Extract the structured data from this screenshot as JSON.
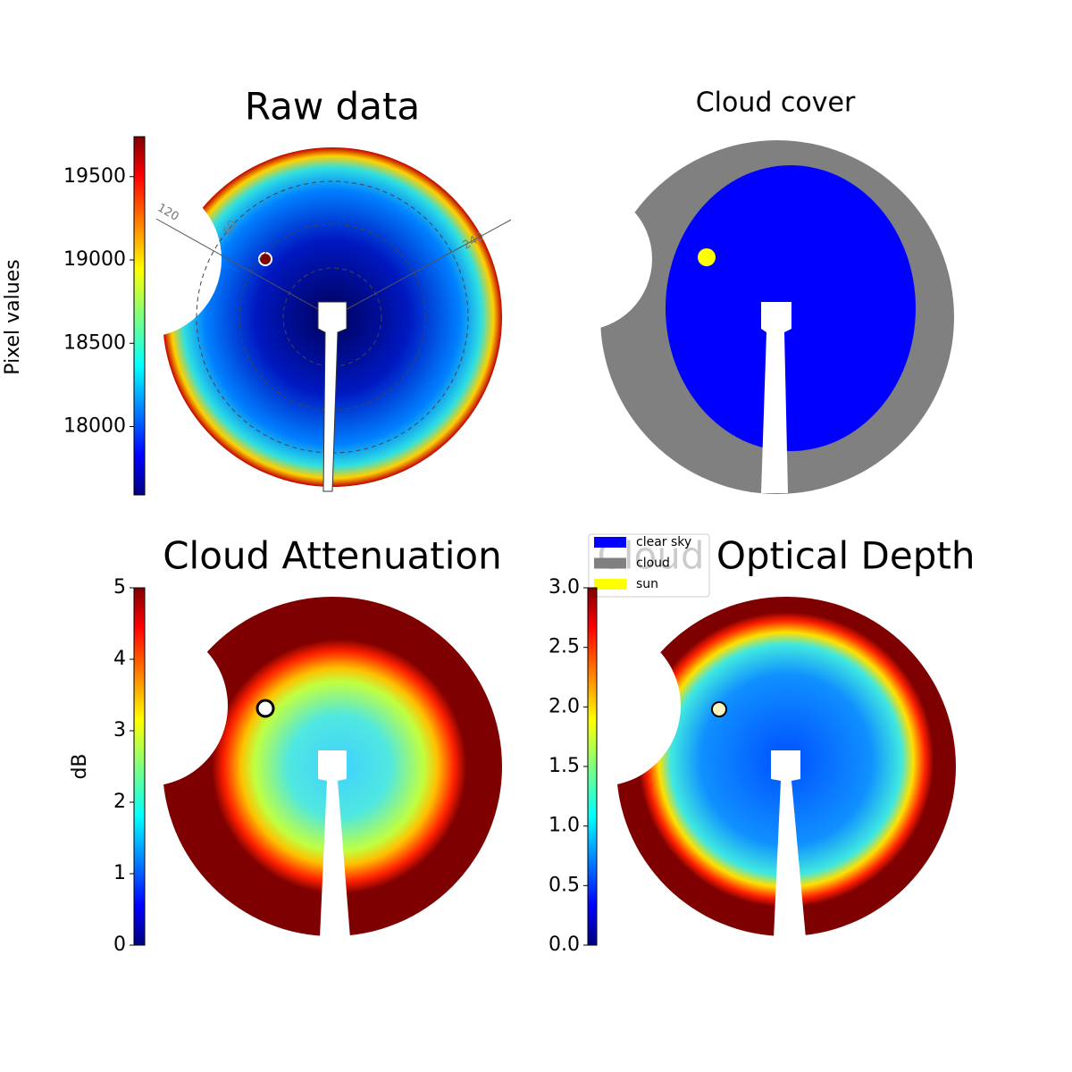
{
  "chart_data": [
    {
      "type": "image",
      "title": "Raw data",
      "colorbar_label": "Pixel values",
      "clim": [
        17590,
        19740
      ],
      "ticks": [
        18000,
        18500,
        19000,
        19500
      ],
      "annotations": [
        "120",
        "60",
        "240"
      ]
    },
    {
      "type": "image",
      "title": "Cloud cover",
      "legend": [
        {
          "name": "clear sky",
          "color": "#0000ff"
        },
        {
          "name": "cloud",
          "color": "#808080"
        },
        {
          "name": "sun",
          "color": "#ffff00"
        }
      ]
    },
    {
      "type": "image",
      "title": "Cloud Attenuation",
      "colorbar_label": "dB",
      "clim": [
        0,
        5
      ],
      "ticks": [
        0,
        1,
        2,
        3,
        4,
        5
      ]
    },
    {
      "type": "image",
      "title": "Cloud Optical Depth",
      "clim": [
        0,
        3
      ],
      "ticks": [
        {
          "value": 0,
          "label": "0.0"
        },
        0.5,
        {
          "value": 1,
          "label": "1.0"
        },
        1.5,
        {
          "value": 2,
          "label": "2.0"
        },
        2.5,
        {
          "value": 3,
          "label": "3.0"
        }
      ]
    }
  ]
}
